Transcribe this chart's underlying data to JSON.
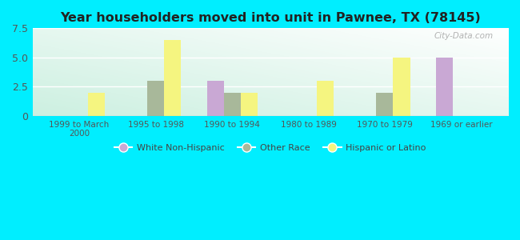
{
  "title": "Year householders moved into unit in Pawnee, TX (78145)",
  "categories": [
    "1999 to March\n2000",
    "1995 to 1998",
    "1990 to 1994",
    "1980 to 1989",
    "1970 to 1979",
    "1969 or earlier"
  ],
  "series": {
    "White Non-Hispanic": [
      0,
      0,
      3.0,
      0,
      0,
      5.0
    ],
    "Other Race": [
      0,
      3.0,
      2.0,
      0,
      2.0,
      0
    ],
    "Hispanic or Latino": [
      2.0,
      6.5,
      2.0,
      3.0,
      5.0,
      0
    ]
  },
  "colors": {
    "White Non-Hispanic": "#c9a8d4",
    "Other Race": "#a8b89a",
    "Hispanic or Latino": "#f5f580"
  },
  "ylim": [
    0,
    7.5
  ],
  "yticks": [
    0,
    2.5,
    5.0,
    7.5
  ],
  "background_outer": "#00eeff",
  "legend_labels": [
    "White Non-Hispanic",
    "Other Race",
    "Hispanic or Latino"
  ],
  "watermark": "City-Data.com",
  "bar_width": 0.22
}
